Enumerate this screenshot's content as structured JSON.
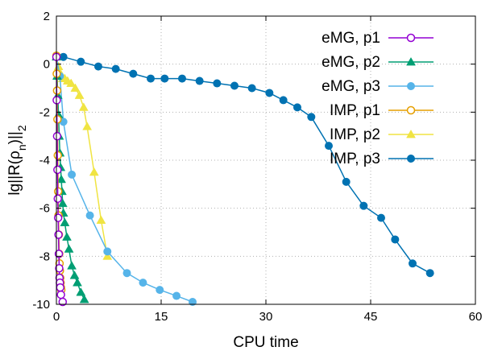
{
  "chart_data": {
    "type": "line",
    "xlabel": "CPU time",
    "ylabel": "lg||R(ρ_n)||_2",
    "xlim": [
      0,
      60
    ],
    "ylim": [
      -10,
      2
    ],
    "xticks": [
      0,
      15,
      30,
      45,
      60
    ],
    "yticks": [
      -10,
      -8,
      -6,
      -4,
      -2,
      0,
      2
    ],
    "grid": true,
    "legend_position": "top-right",
    "series": [
      {
        "name": "eMG, p1",
        "color": "#9400d3",
        "marker": "open-circle",
        "x": [
          0.0,
          0.05,
          0.1,
          0.15,
          0.2,
          0.25,
          0.3,
          0.35,
          0.4,
          0.45,
          0.5,
          0.55,
          0.65,
          0.9
        ],
        "y": [
          0.3,
          -1.5,
          -3.0,
          -4.4,
          -5.6,
          -6.4,
          -7.1,
          -7.9,
          -8.5,
          -8.9,
          -9.1,
          -9.3,
          -9.6,
          -9.9
        ]
      },
      {
        "name": "eMG, p2",
        "color": "#009e73",
        "marker": "filled-triangle",
        "x": [
          0.0,
          0.1,
          0.2,
          0.3,
          0.4,
          0.5,
          0.6,
          0.7,
          0.8,
          0.9,
          1.0,
          1.2,
          1.5,
          1.8,
          2.2,
          2.6,
          3.0,
          3.5,
          4.0
        ],
        "y": [
          0.3,
          -0.5,
          -1.3,
          -2.1,
          -3.0,
          -3.7,
          -4.3,
          -4.8,
          -5.3,
          -5.8,
          -6.2,
          -6.6,
          -7.2,
          -7.7,
          -8.4,
          -8.8,
          -9.1,
          -9.5,
          -9.8
        ]
      },
      {
        "name": "eMG, p3",
        "color": "#56b4e9",
        "marker": "filled-circle",
        "x": [
          0.0,
          0.5,
          1.0,
          2.2,
          4.8,
          7.3,
          10.1,
          12.4,
          14.8,
          17.2,
          19.5
        ],
        "y": [
          0.3,
          -0.5,
          -2.4,
          -4.6,
          -6.3,
          -7.8,
          -8.7,
          -9.1,
          -9.4,
          -9.65,
          -9.9
        ]
      },
      {
        "name": "IMP, p1",
        "color": "#e69f00",
        "marker": "open-circle",
        "x": [
          0.0,
          0.05,
          0.1,
          0.15,
          0.2,
          0.25,
          0.3,
          0.35,
          0.4,
          0.45,
          0.5,
          0.55,
          0.6,
          0.65,
          0.7
        ],
        "y": [
          0.35,
          -0.4,
          -1.1,
          -2.3,
          -3.8,
          -5.3,
          -6.3,
          -7.1,
          -7.9,
          -8.3,
          -8.6,
          -8.9,
          -9.1,
          -9.3,
          -9.4
        ]
      },
      {
        "name": "IMP, p2",
        "color": "#f0e442",
        "marker": "filled-triangle",
        "x": [
          0.0,
          0.3,
          0.6,
          0.9,
          1.2,
          1.6,
          2.1,
          2.7,
          3.3,
          3.9,
          4.4,
          5.4,
          6.4,
          7.3
        ],
        "y": [
          0.3,
          -0.1,
          -0.4,
          -0.6,
          -0.6,
          -0.7,
          -0.8,
          -1.0,
          -1.3,
          -1.8,
          -2.6,
          -4.5,
          -6.5,
          -8.0
        ]
      },
      {
        "name": "IMP, p3",
        "color": "#0072b2",
        "marker": "filled-circle",
        "x": [
          0.0,
          1.0,
          3.5,
          6.0,
          8.5,
          11.0,
          13.5,
          15.5,
          18.0,
          20.5,
          23.0,
          25.5,
          28.0,
          30.5,
          32.5,
          34.5,
          36.5,
          39.0,
          41.5,
          44.0,
          46.5,
          48.5,
          51.0,
          53.5
        ],
        "y": [
          0.3,
          0.3,
          0.1,
          -0.1,
          -0.2,
          -0.4,
          -0.6,
          -0.6,
          -0.6,
          -0.7,
          -0.8,
          -0.9,
          -1.0,
          -1.2,
          -1.5,
          -1.8,
          -2.2,
          -3.4,
          -4.9,
          -5.9,
          -6.4,
          -7.3,
          -8.3,
          -8.7
        ]
      }
    ]
  }
}
